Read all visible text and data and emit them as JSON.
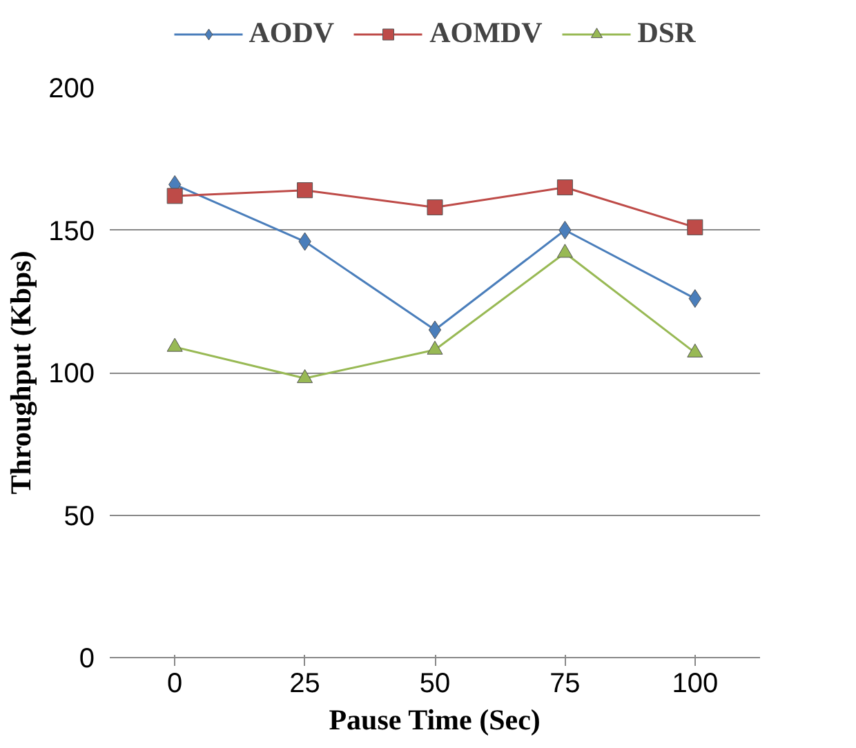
{
  "chart_data": {
    "type": "line",
    "xlabel": "Pause Time (Sec)",
    "ylabel": "Throughput (Kbps)",
    "categories": [
      "0",
      "25",
      "50",
      "75",
      "100"
    ],
    "series": [
      {
        "name": "AODV",
        "color": "#4a7ebb",
        "marker": "diamond",
        "values": [
          166,
          146,
          115,
          150,
          126
        ]
      },
      {
        "name": "AOMDV",
        "color": "#be4b48",
        "marker": "square",
        "values": [
          162,
          164,
          158,
          165,
          151
        ]
      },
      {
        "name": "DSR",
        "color": "#98b954",
        "marker": "triangle",
        "values": [
          109,
          98,
          108,
          142,
          107
        ]
      }
    ],
    "ylim": [
      0,
      200
    ],
    "yticks": [
      0,
      50,
      100,
      150,
      200
    ],
    "grid": "y",
    "legend": "top",
    "line_style": "solid"
  }
}
